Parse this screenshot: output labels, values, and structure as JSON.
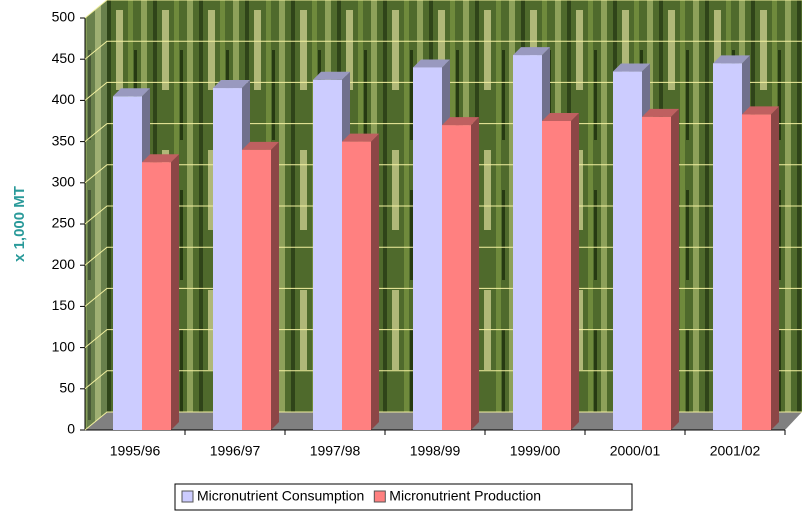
{
  "chart_data": {
    "type": "bar3d",
    "y_label": "x 1,000 MT",
    "categories": [
      "1995/96",
      "1996/97",
      "1997/98",
      "1998/99",
      "1999/00",
      "2000/01",
      "2001/02"
    ],
    "series": [
      {
        "name": "Micronutrient Consumption",
        "color": "#ccccff",
        "values": [
          405,
          415,
          425,
          440,
          455,
          435,
          445
        ]
      },
      {
        "name": "Micronutrient Production",
        "color": "#ff8080",
        "values": [
          325,
          340,
          350,
          370,
          375,
          380,
          383
        ]
      }
    ],
    "ylim": [
      0,
      500
    ],
    "yticks": [
      0,
      50,
      100,
      150,
      200,
      250,
      300,
      350,
      400,
      450,
      500
    ],
    "grid": true
  }
}
